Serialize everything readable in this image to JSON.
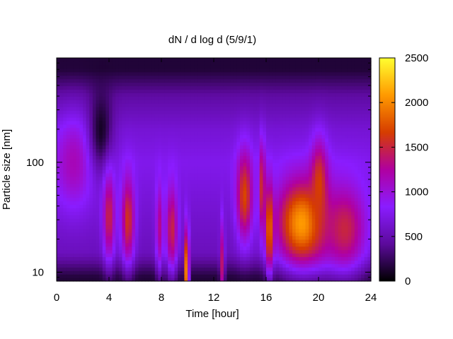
{
  "chart_data": {
    "type": "heatmap",
    "title": "dN / d log d (5/9/1)",
    "xlabel": "Time [hour]",
    "ylabel": "Particle size [nm]",
    "xlim": [
      0,
      24
    ],
    "ylim": [
      8.3,
      890
    ],
    "y_scale": "log",
    "x_ticks": [
      0,
      4,
      8,
      12,
      16,
      20,
      24
    ],
    "y_ticks": [
      10,
      100
    ],
    "colorbar": {
      "min": 0,
      "max": 2500,
      "ticks": [
        0,
        500,
        1000,
        1500,
        2000,
        2500
      ],
      "colormap": [
        "#000000",
        "#5c0a9c",
        "#8a1cff",
        "#b000a0",
        "#d63d00",
        "#ff9a00",
        "#ffff30"
      ]
    },
    "grid": false,
    "background_level": [
      {
        "size_nm": 9,
        "value": 150
      },
      {
        "size_nm": 15,
        "value": 550
      },
      {
        "size_nm": 40,
        "value": 650
      },
      {
        "size_nm": 100,
        "value": 750
      },
      {
        "size_nm": 200,
        "value": 650
      },
      {
        "size_nm": 400,
        "value": 450
      },
      {
        "size_nm": 700,
        "value": 150
      }
    ],
    "features": [
      {
        "t_start": 0,
        "t_end": 2.6,
        "size_nm": 100,
        "peak": 1150
      },
      {
        "t_start": 2.6,
        "t_end": 4.2,
        "size_nm": 200,
        "peak": 100
      },
      {
        "t_start": 3.6,
        "t_end": 4.4,
        "size_nm": 32,
        "peak": 1500
      },
      {
        "t_start": 5.0,
        "t_end": 5.9,
        "size_nm": 30,
        "peak": 1600
      },
      {
        "t_start": 7.6,
        "t_end": 8.1,
        "size_nm": 26,
        "peak": 1300
      },
      {
        "t_start": 8.4,
        "t_end": 9.2,
        "size_nm": 25,
        "peak": 1500
      },
      {
        "t_start": 9.8,
        "t_end": 10.1,
        "size_nm": 10,
        "peak": 2300
      },
      {
        "t_start": 12.5,
        "t_end": 12.8,
        "size_nm": 12,
        "peak": 1400
      },
      {
        "t_start": 13.8,
        "t_end": 14.9,
        "size_nm": 50,
        "peak": 1700
      },
      {
        "t_start": 15.5,
        "t_end": 15.9,
        "size_nm": 60,
        "peak": 1600
      },
      {
        "t_start": 16.0,
        "t_end": 16.5,
        "size_nm": 25,
        "peak": 1900
      },
      {
        "t_start": 17.0,
        "t_end": 20.5,
        "size_nm": 28,
        "peak": 2100
      },
      {
        "t_start": 19.5,
        "t_end": 20.6,
        "size_nm": 60,
        "peak": 1700
      },
      {
        "t_start": 20.5,
        "t_end": 23.5,
        "size_nm": 25,
        "peak": 1500
      }
    ]
  }
}
